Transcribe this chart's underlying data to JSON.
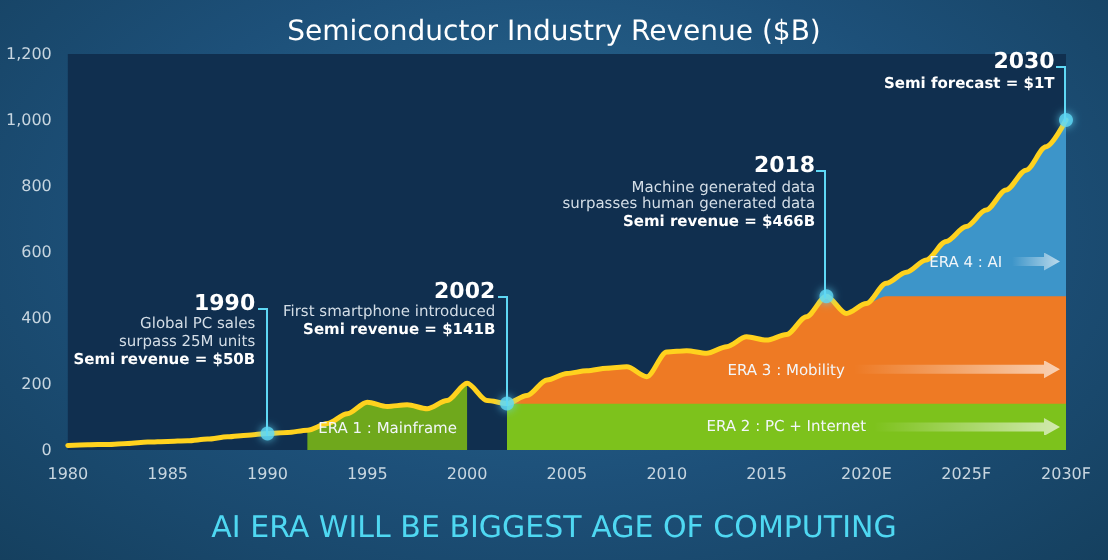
{
  "chart_data": {
    "type": "line",
    "title": "Semiconductor Industry Revenue ($B)",
    "xlim": [
      1980,
      2030
    ],
    "xticks": [
      1980,
      1985,
      1990,
      1995,
      2000,
      2005,
      2010,
      2015,
      {
        "value": 2020,
        "label": "2020E"
      },
      {
        "value": 2025,
        "label": "2025F"
      },
      {
        "value": 2030,
        "label": "2030F"
      }
    ],
    "ylim": [
      0,
      1200
    ],
    "yticks": [
      0,
      200,
      400,
      600,
      800,
      {
        "value": 1000,
        "label": "1,000"
      },
      {
        "value": 1200,
        "label": "1,200"
      }
    ],
    "series": [
      {
        "type": "area",
        "color": "#6fa81c",
        "x": [
          1992,
          1993,
          1994,
          1995,
          1996,
          1997,
          1998,
          1999,
          2000
        ],
        "values": [
          60,
          80,
          110,
          145,
          132,
          137,
          125,
          150,
          202
        ]
      },
      {
        "type": "area",
        "color": "#7dc21c",
        "x": [
          2002,
          2030
        ],
        "values": [
          140,
          140
        ]
      },
      {
        "type": "area",
        "color": "#ee7a24",
        "x": [
          2002,
          2003,
          2004,
          2005,
          2006,
          2007,
          2008,
          2009,
          2010,
          2011,
          2012,
          2013,
          2014,
          2015,
          2016,
          2017,
          2018,
          2019,
          2020,
          2021,
          2030
        ],
        "values": [
          141,
          165,
          212,
          232,
          240,
          248,
          252,
          222,
          297,
          301,
          293,
          313,
          343,
          333,
          350,
          404,
          466,
          414,
          444,
          466,
          466
        ]
      },
      {
        "type": "area",
        "color": "#3d95c9",
        "x": [
          2020,
          2021,
          2022,
          2023,
          2024,
          2025,
          2026,
          2027,
          2028,
          2029,
          2030
        ],
        "values": [
          444,
          505,
          539,
          576,
          632,
          677,
          727,
          788,
          848,
          919,
          1000
        ]
      },
      {
        "type": "line",
        "color": "#ffd21e",
        "x": [
          1980,
          1981,
          1982,
          1983,
          1984,
          1985,
          1986,
          1987,
          1988,
          1989,
          1990,
          1991,
          1992,
          1993,
          1994,
          1995,
          1996,
          1997,
          1998,
          1999,
          2000,
          2001,
          2002,
          2003,
          2004,
          2005,
          2006,
          2007,
          2008,
          2009,
          2010,
          2011,
          2012,
          2013,
          2014,
          2015,
          2016,
          2017,
          2018,
          2019,
          2020,
          2021,
          2022,
          2023,
          2024,
          2025,
          2026,
          2027,
          2028,
          2029,
          2030
        ],
        "values": [
          14,
          16,
          17,
          20,
          24,
          26,
          28,
          33,
          40,
          45,
          50,
          53,
          60,
          80,
          110,
          145,
          132,
          137,
          125,
          150,
          202,
          150,
          141,
          165,
          212,
          232,
          240,
          248,
          252,
          222,
          297,
          301,
          293,
          313,
          343,
          333,
          350,
          404,
          466,
          414,
          444,
          505,
          539,
          576,
          632,
          677,
          727,
          788,
          848,
          919,
          1000
        ]
      },
      {
        "type": "scatter",
        "color": "#5fd8f5",
        "x": [
          1990,
          2002,
          2018,
          2030
        ],
        "values": [
          50,
          141,
          466,
          1000
        ]
      }
    ],
    "annotations": [
      "ERA 1 : Mainframe",
      "ERA 2 : PC + Internet",
      "ERA 3 : Mobility",
      "ERA 4 : AI",
      {
        "text": "1990\nGlobal PC sales\nsurpass 25M units\nSemi revenue = $50B",
        "x": 1990,
        "y": 50
      },
      {
        "text": "2002\nFirst smartphone introduced\nSemi revenue = $141B",
        "x": 2002,
        "y": 141
      },
      {
        "text": "2018\nMachine generated data\nsurpasses human generated data\nSemi revenue = $466B",
        "x": 2018,
        "y": 466
      },
      {
        "text": "2030\nSemi forecast = $1T",
        "x": 2030,
        "y": 1000
      },
      "AI ERA WILL BE BIGGEST AGE OF COMPUTING"
    ]
  }
}
